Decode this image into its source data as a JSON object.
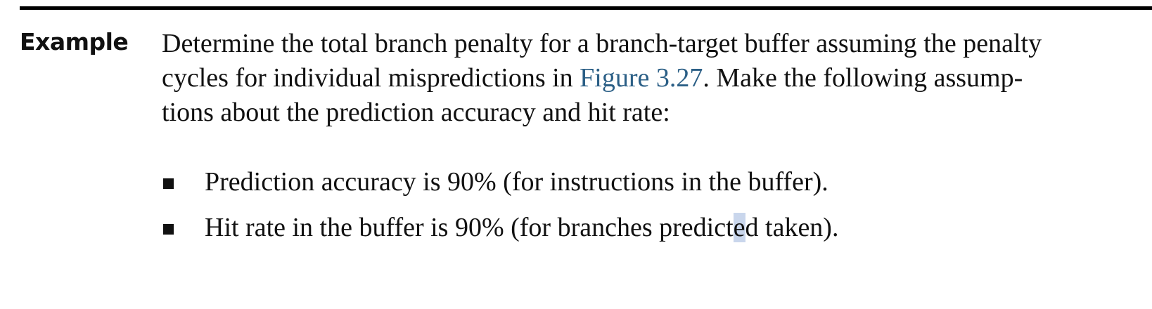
{
  "example": {
    "label": "Example",
    "lines": [
      [
        "Determine the total branch penalty for a branch-target buffer assuming the penalty"
      ],
      [
        "cycles for individual mispredictions in ",
        "Figure 3.27",
        ". Make the following assump-"
      ],
      [
        "tions about the prediction accuracy and hit rate:"
      ]
    ]
  },
  "bullets": [
    {
      "text": "Prediction accuracy is 90% (for instructions in the buffer)."
    },
    {
      "text_before": "Hit rate in the buffer is 90% (for branches predict",
      "text_selected": "e",
      "text_after": "d taken)."
    }
  ],
  "colors": {
    "link": "#2b5f86",
    "selection": "#c9d6ec",
    "rule": "#000000"
  }
}
